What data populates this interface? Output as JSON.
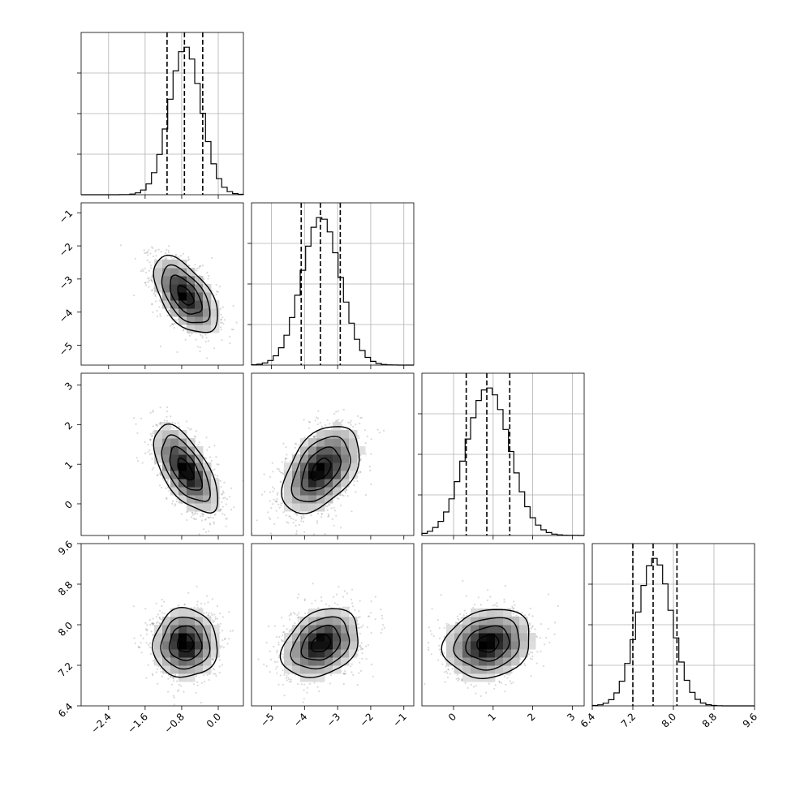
{
  "chart_data": {
    "type": "corner",
    "params": [
      {
        "ticks": [
          "-2.4",
          "-1.6",
          "-0.8",
          "0.0"
        ],
        "tick_values": [
          -2.4,
          -1.6,
          -0.8,
          0.0
        ],
        "range": [
          -3.0,
          0.55
        ],
        "mean": -0.72,
        "sigma": 0.35,
        "quantiles": [
          -1.12,
          -0.74,
          -0.34
        ]
      },
      {
        "ticks": [
          "-5",
          "-4",
          "-3",
          "-2",
          "-1"
        ],
        "tick_values": [
          -5,
          -4,
          -3,
          -2,
          -1
        ],
        "range": [
          -5.6,
          -0.7
        ],
        "mean": -3.5,
        "sigma": 0.58,
        "quantiles": [
          -4.1,
          -3.52,
          -2.92
        ]
      },
      {
        "ticks": [
          "0",
          "1",
          "2",
          "3"
        ],
        "tick_values": [
          0,
          1,
          2,
          3
        ],
        "range": [
          -0.8,
          3.3
        ],
        "mean": 0.87,
        "sigma": 0.55,
        "quantiles": [
          0.32,
          0.84,
          1.42
        ]
      },
      {
        "ticks": [
          "6.4",
          "7.2",
          "8.0",
          "8.8",
          "9.6"
        ],
        "tick_values": [
          6.4,
          7.2,
          8.0,
          8.8,
          9.6
        ],
        "range": [
          6.4,
          9.6
        ],
        "mean": 7.63,
        "sigma": 0.34,
        "quantiles": [
          7.2,
          7.6,
          8.07
        ]
      }
    ],
    "correlations": {
      "1-0": -0.55,
      "2-0": -0.62,
      "2-1": 0.45,
      "3-0": 0.0,
      "3-1": 0.3,
      "3-2": 0.15
    },
    "grid": true,
    "legend": "none"
  }
}
